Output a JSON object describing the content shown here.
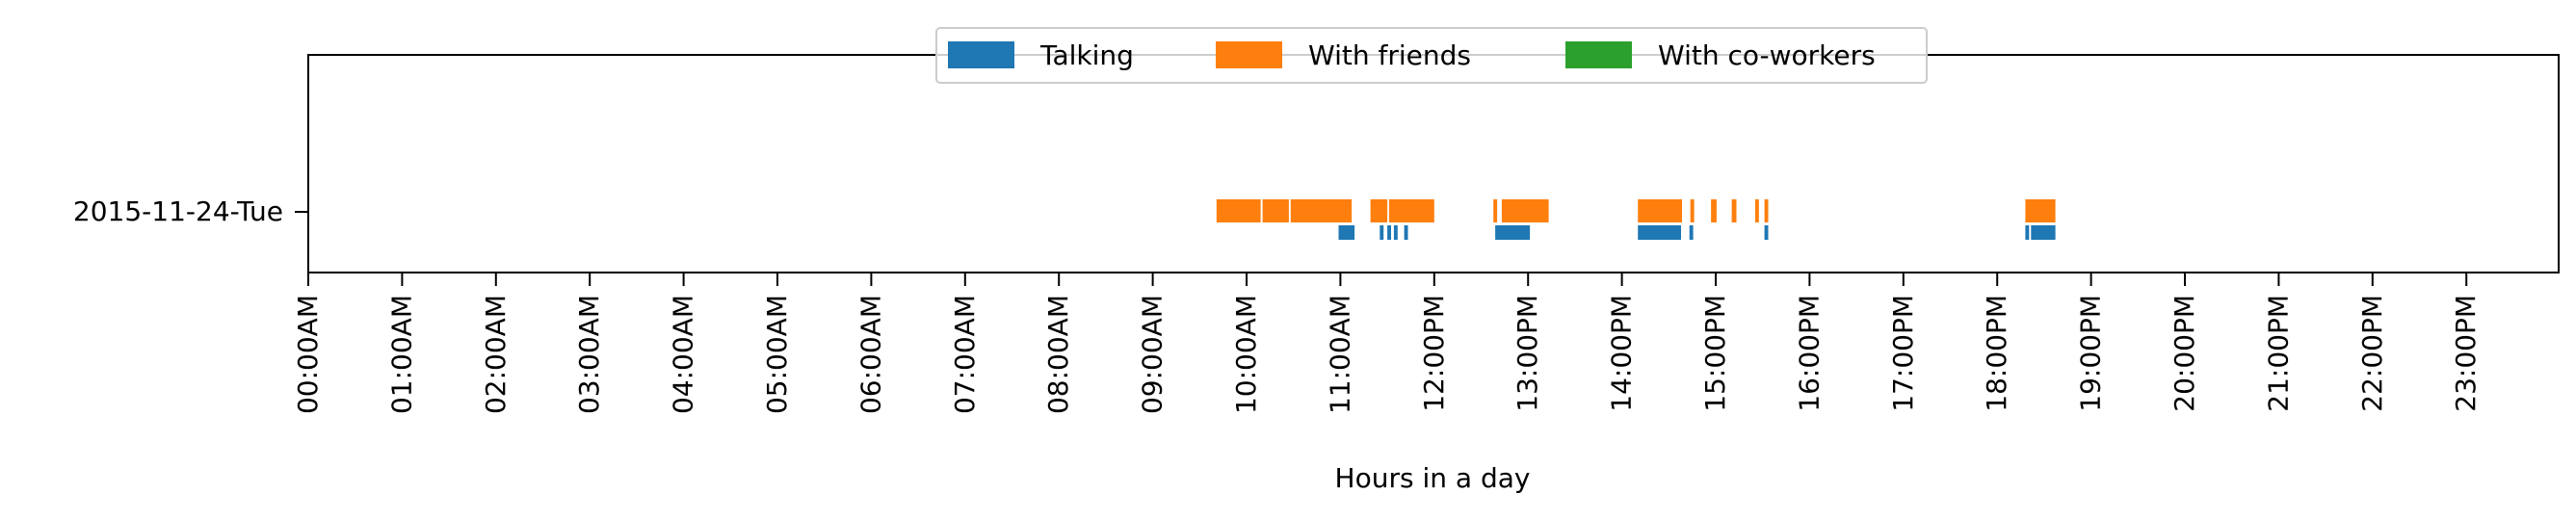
{
  "chart_data": {
    "type": "timeline",
    "title": "",
    "xlabel": "Hours in a day",
    "ylabel": "",
    "xlim": [
      0,
      24
    ],
    "grid": false,
    "legend_position": "top-center",
    "x_ticks": [
      {
        "value": 0,
        "label": "00:00AM"
      },
      {
        "value": 1,
        "label": "01:00AM"
      },
      {
        "value": 2,
        "label": "02:00AM"
      },
      {
        "value": 3,
        "label": "03:00AM"
      },
      {
        "value": 4,
        "label": "04:00AM"
      },
      {
        "value": 5,
        "label": "05:00AM"
      },
      {
        "value": 6,
        "label": "06:00AM"
      },
      {
        "value": 7,
        "label": "07:00AM"
      },
      {
        "value": 8,
        "label": "08:00AM"
      },
      {
        "value": 9,
        "label": "09:00AM"
      },
      {
        "value": 10,
        "label": "10:00AM"
      },
      {
        "value": 11,
        "label": "11:00AM"
      },
      {
        "value": 12,
        "label": "12:00PM"
      },
      {
        "value": 13,
        "label": "13:00PM"
      },
      {
        "value": 14,
        "label": "14:00PM"
      },
      {
        "value": 15,
        "label": "15:00PM"
      },
      {
        "value": 16,
        "label": "16:00PM"
      },
      {
        "value": 17,
        "label": "17:00PM"
      },
      {
        "value": 18,
        "label": "18:00PM"
      },
      {
        "value": 19,
        "label": "19:00PM"
      },
      {
        "value": 20,
        "label": "20:00PM"
      },
      {
        "value": 21,
        "label": "21:00PM"
      },
      {
        "value": 22,
        "label": "22:00PM"
      },
      {
        "value": 23,
        "label": "23:00PM"
      }
    ],
    "rows": [
      "2015-11-24-Tue"
    ],
    "series": [
      {
        "name": "Talking",
        "color": "#1f77b4",
        "intervals": [
          [
            10.98,
            11.15
          ],
          [
            11.42,
            11.46
          ],
          [
            11.5,
            11.54
          ],
          [
            11.57,
            11.61
          ],
          [
            11.68,
            11.72
          ],
          [
            12.65,
            13.02
          ],
          [
            14.17,
            14.63
          ],
          [
            14.72,
            14.76
          ],
          [
            15.52,
            15.56
          ],
          [
            18.3,
            18.34
          ],
          [
            18.36,
            18.62
          ]
        ]
      },
      {
        "name": "With friends",
        "color": "#ff7f0e",
        "intervals": [
          [
            9.68,
            10.15
          ],
          [
            10.17,
            10.45
          ],
          [
            10.47,
            11.12
          ],
          [
            11.32,
            11.5
          ],
          [
            11.52,
            12.0
          ],
          [
            12.63,
            12.67
          ],
          [
            12.72,
            13.22
          ],
          [
            14.17,
            14.64
          ],
          [
            14.73,
            14.77
          ],
          [
            14.95,
            15.01
          ],
          [
            15.17,
            15.22
          ],
          [
            15.42,
            15.46
          ],
          [
            15.52,
            15.56
          ],
          [
            18.3,
            18.62
          ]
        ]
      },
      {
        "name": "With co-workers",
        "color": "#2ca02c",
        "intervals": []
      }
    ]
  }
}
